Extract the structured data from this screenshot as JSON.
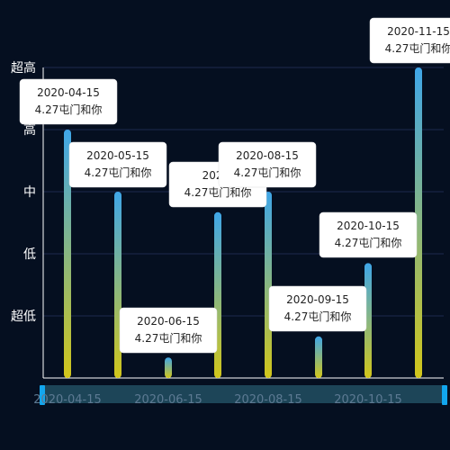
{
  "chart_data": {
    "type": "bar",
    "categories": [
      "2020-04-15",
      "2020-05-15",
      "2020-06-15",
      "2020-07-15",
      "2020-08-15",
      "2020-09-15",
      "2020-10-15",
      "2020-11-15"
    ],
    "values": [
      4.0,
      3.0,
      0.33,
      2.67,
      3.0,
      0.67,
      1.85,
      5.0
    ],
    "y_tick_labels": [
      "超低",
      "低",
      "中",
      "高",
      "超高"
    ],
    "ylim": [
      0,
      5
    ],
    "x_axis_labels": [
      "2020-04-15",
      "2020-06-15",
      "2020-08-15",
      "2020-10-15"
    ],
    "tooltip_value": "4.27屯门和你",
    "tooltip_date_cut": "2020-",
    "colors": {
      "background": "#050f20",
      "grid": "#1d2a4e",
      "axis": "#ffffff",
      "bar_top": "#3fa6e8",
      "bar_bottom": "#d2c61a",
      "slider_track": "#1d4558",
      "slider_handle": "#12a6ee",
      "x_label": "#5d7a93"
    }
  }
}
